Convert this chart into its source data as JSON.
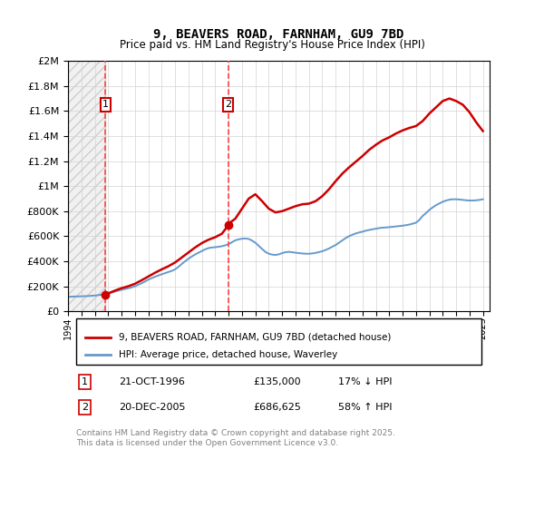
{
  "title": "9, BEAVERS ROAD, FARNHAM, GU9 7BD",
  "subtitle": "Price paid vs. HM Land Registry's House Price Index (HPI)",
  "legend_line1": "9, BEAVERS ROAD, FARNHAM, GU9 7BD (detached house)",
  "legend_line2": "HPI: Average price, detached house, Waverley",
  "transaction1_date": "21-OCT-1996",
  "transaction1_price": 135000,
  "transaction1_note": "17% ↓ HPI",
  "transaction2_date": "20-DEC-2005",
  "transaction2_price": 686625,
  "transaction2_note": "58% ↑ HPI",
  "footer": "Contains HM Land Registry data © Crown copyright and database right 2025.\nThis data is licensed under the Open Government Licence v3.0.",
  "hpi_color": "#6699cc",
  "price_color": "#cc0000",
  "vline_color": "#ff4444",
  "dot_color": "#cc0000",
  "ylim_max": 2000000,
  "ylim_min": 0,
  "xlim_min": 1994.0,
  "xlim_max": 2025.5,
  "transaction1_x": 1996.8,
  "transaction2_x": 2005.97,
  "hpi_x": [
    1994.0,
    1994.25,
    1994.5,
    1994.75,
    1995.0,
    1995.25,
    1995.5,
    1995.75,
    1996.0,
    1996.25,
    1996.5,
    1996.75,
    1997.0,
    1997.25,
    1997.5,
    1997.75,
    1998.0,
    1998.25,
    1998.5,
    1998.75,
    1999.0,
    1999.25,
    1999.5,
    1999.75,
    2000.0,
    2000.25,
    2000.5,
    2000.75,
    2001.0,
    2001.25,
    2001.5,
    2001.75,
    2002.0,
    2002.25,
    2002.5,
    2002.75,
    2003.0,
    2003.25,
    2003.5,
    2003.75,
    2004.0,
    2004.25,
    2004.5,
    2004.75,
    2005.0,
    2005.25,
    2005.5,
    2005.75,
    2006.0,
    2006.25,
    2006.5,
    2006.75,
    2007.0,
    2007.25,
    2007.5,
    2007.75,
    2008.0,
    2008.25,
    2008.5,
    2008.75,
    2009.0,
    2009.25,
    2009.5,
    2009.75,
    2010.0,
    2010.25,
    2010.5,
    2010.75,
    2011.0,
    2011.25,
    2011.5,
    2011.75,
    2012.0,
    2012.25,
    2012.5,
    2012.75,
    2013.0,
    2013.25,
    2013.5,
    2013.75,
    2014.0,
    2014.25,
    2014.5,
    2014.75,
    2015.0,
    2015.25,
    2015.5,
    2015.75,
    2016.0,
    2016.25,
    2016.5,
    2016.75,
    2017.0,
    2017.25,
    2017.5,
    2017.75,
    2018.0,
    2018.25,
    2018.5,
    2018.75,
    2019.0,
    2019.25,
    2019.5,
    2019.75,
    2020.0,
    2020.25,
    2020.5,
    2020.75,
    2021.0,
    2021.25,
    2021.5,
    2021.75,
    2022.0,
    2022.25,
    2022.5,
    2022.75,
    2023.0,
    2023.25,
    2023.5,
    2023.75,
    2024.0,
    2024.25,
    2024.5,
    2024.75,
    2025.0
  ],
  "hpi_y": [
    115000,
    117000,
    118000,
    119000,
    120000,
    121000,
    122000,
    124000,
    126000,
    129000,
    133000,
    138000,
    143000,
    150000,
    158000,
    165000,
    172000,
    178000,
    184000,
    191000,
    200000,
    212000,
    224000,
    238000,
    253000,
    265000,
    276000,
    286000,
    296000,
    305000,
    314000,
    323000,
    335000,
    355000,
    378000,
    400000,
    420000,
    438000,
    454000,
    468000,
    482000,
    495000,
    505000,
    510000,
    512000,
    516000,
    520000,
    527000,
    537000,
    552000,
    567000,
    575000,
    580000,
    582000,
    578000,
    565000,
    548000,
    523000,
    498000,
    475000,
    460000,
    453000,
    450000,
    455000,
    465000,
    472000,
    475000,
    472000,
    468000,
    465000,
    462000,
    460000,
    460000,
    462000,
    467000,
    473000,
    480000,
    490000,
    502000,
    516000,
    530000,
    548000,
    567000,
    585000,
    600000,
    612000,
    622000,
    630000,
    636000,
    644000,
    650000,
    655000,
    660000,
    665000,
    668000,
    670000,
    672000,
    675000,
    678000,
    681000,
    684000,
    688000,
    693000,
    700000,
    708000,
    730000,
    762000,
    785000,
    810000,
    830000,
    848000,
    862000,
    875000,
    885000,
    892000,
    895000,
    895000,
    893000,
    890000,
    887000,
    885000,
    885000,
    887000,
    890000,
    895000
  ],
  "hpi_scaled_x": [
    1994.0,
    1994.25,
    1994.5,
    1994.75,
    1995.0,
    1995.25,
    1995.5,
    1995.75,
    1996.0,
    1996.25,
    1996.5,
    1996.75,
    1997.0,
    1997.25,
    1997.5,
    1997.75,
    1998.0,
    1998.25,
    1998.5,
    1998.75,
    1999.0,
    1999.25,
    1999.5,
    1999.75,
    2000.0,
    2000.25,
    2000.5,
    2000.75,
    2001.0,
    2001.25,
    2001.5,
    2001.75,
    2002.0,
    2002.25,
    2002.5,
    2002.75,
    2003.0,
    2003.25,
    2003.5,
    2003.75,
    2004.0,
    2004.25,
    2004.5,
    2004.75,
    2005.0,
    2005.25,
    2005.5,
    2005.75,
    2006.0,
    2006.25,
    2006.5,
    2006.75,
    2007.0,
    2007.25,
    2007.5,
    2007.75,
    2008.0,
    2008.25,
    2008.5,
    2008.75,
    2009.0,
    2009.25,
    2009.5,
    2009.75,
    2010.0,
    2010.25,
    2010.5,
    2010.75,
    2011.0,
    2011.25,
    2011.5,
    2011.75,
    2012.0,
    2012.25,
    2012.5,
    2012.75,
    2013.0,
    2013.25,
    2013.5,
    2013.75,
    2014.0,
    2014.25,
    2014.5,
    2014.75,
    2015.0,
    2015.25,
    2015.5,
    2015.75,
    2016.0,
    2016.25,
    2016.5,
    2016.75,
    2017.0,
    2017.25,
    2017.5,
    2017.75,
    2018.0,
    2018.25,
    2018.5,
    2018.75,
    2019.0,
    2019.25,
    2019.5,
    2019.75,
    2020.0,
    2020.25,
    2020.5,
    2020.75,
    2021.0,
    2021.25,
    2021.5,
    2021.75,
    2022.0,
    2022.25,
    2022.5,
    2022.75,
    2023.0,
    2023.25,
    2023.5,
    2023.75,
    2024.0,
    2024.25,
    2024.5,
    2024.75,
    2025.0
  ],
  "price_line_x": [
    1996.8,
    1997.0,
    1997.5,
    1998.0,
    1998.5,
    1999.0,
    1999.5,
    2000.0,
    2000.5,
    2001.0,
    2001.5,
    2002.0,
    2002.5,
    2003.0,
    2003.5,
    2004.0,
    2004.5,
    2005.0,
    2005.5,
    2005.97,
    2006.0,
    2006.5,
    2007.0,
    2007.5,
    2008.0,
    2008.5,
    2009.0,
    2009.5,
    2010.0,
    2010.5,
    2011.0,
    2011.5,
    2012.0,
    2012.5,
    2013.0,
    2013.5,
    2014.0,
    2014.5,
    2015.0,
    2015.5,
    2016.0,
    2016.5,
    2017.0,
    2017.5,
    2018.0,
    2018.5,
    2019.0,
    2019.5,
    2020.0,
    2020.5,
    2021.0,
    2021.5,
    2022.0,
    2022.5,
    2023.0,
    2023.5,
    2024.0,
    2024.5,
    2025.0
  ],
  "price_line_y": [
    135000,
    143000,
    165000,
    185000,
    200000,
    220000,
    248000,
    278000,
    308000,
    335000,
    360000,
    390000,
    430000,
    470000,
    510000,
    545000,
    572000,
    592000,
    620000,
    686625,
    700000,
    740000,
    820000,
    900000,
    935000,
    880000,
    820000,
    790000,
    800000,
    820000,
    840000,
    855000,
    860000,
    880000,
    920000,
    975000,
    1040000,
    1100000,
    1150000,
    1195000,
    1240000,
    1290000,
    1330000,
    1365000,
    1390000,
    1420000,
    1445000,
    1465000,
    1480000,
    1520000,
    1580000,
    1630000,
    1680000,
    1700000,
    1680000,
    1650000,
    1590000,
    1510000,
    1440000
  ]
}
